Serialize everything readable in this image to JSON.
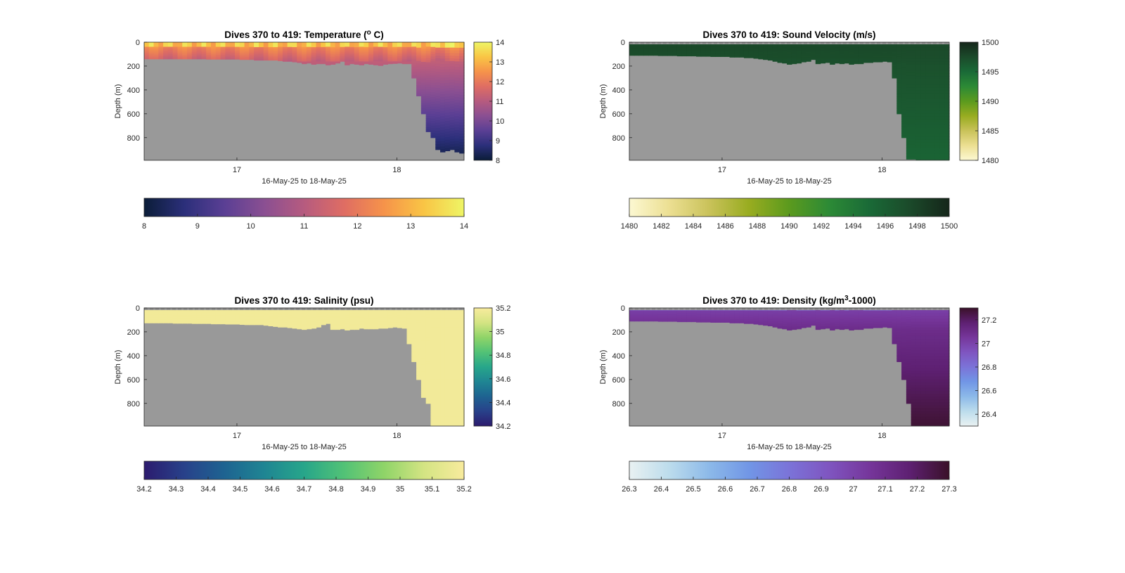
{
  "chart_data": [
    {
      "type": "heatmap",
      "title_main": "Dives 370 to 419: Temperature (",
      "title_sup": "o",
      "title_tail": " C)",
      "ylabel": "Depth (m)",
      "xlabel": "16-May-25 to 18-May-25",
      "x_ticks": [
        "17",
        "18"
      ],
      "y_ticks": [
        "0",
        "200",
        "400",
        "600",
        "800"
      ],
      "ylim": [
        0,
        990
      ],
      "colorbar_right_ticks": [
        "8",
        "9",
        "10",
        "11",
        "12",
        "13",
        "14"
      ],
      "colorbar_bottom_ticks": [
        "8",
        "9",
        "10",
        "11",
        "12",
        "13",
        "14"
      ],
      "clim": [
        8,
        14
      ],
      "colormap": [
        "#0b1d38",
        "#2b2f7a",
        "#5a3f94",
        "#8a4f92",
        "#b65b7f",
        "#df6d63",
        "#f6934a",
        "#f9c545",
        "#eef565"
      ],
      "nodata_color": "#999999",
      "max_depth_profile": [
        140,
        140,
        140,
        140,
        140,
        140,
        140,
        140,
        140,
        140,
        140,
        140,
        140,
        142,
        142,
        142,
        142,
        142,
        142,
        142,
        145,
        145,
        145,
        150,
        150,
        150,
        150,
        150,
        155,
        160,
        160,
        165,
        170,
        180,
        175,
        185,
        180,
        180,
        190,
        185,
        175,
        160,
        190,
        180,
        185,
        190,
        180,
        185,
        190,
        195,
        185,
        180,
        178,
        175,
        180,
        180,
        300,
        450,
        600,
        750,
        800,
        900,
        920,
        910,
        900,
        920,
        930
      ],
      "value_note": "surface ~13-14, ~11 at 150 m, ~10 at 400 m, ~8.5 at 800 m"
    },
    {
      "type": "heatmap",
      "title_main": "Dives 370 to 419: Sound Velocity (m/s)",
      "title_sup": "",
      "title_tail": "",
      "ylabel": "Depth (m)",
      "xlabel": "16-May-25 to 18-May-25",
      "x_ticks": [
        "17",
        "18"
      ],
      "y_ticks": [
        "0",
        "200",
        "400",
        "600",
        "800"
      ],
      "ylim": [
        0,
        990
      ],
      "colorbar_right_ticks": [
        "1480",
        "1485",
        "1490",
        "1495",
        "1500"
      ],
      "colorbar_bottom_ticks": [
        "1480",
        "1482",
        "1484",
        "1486",
        "1488",
        "1490",
        "1492",
        "1494",
        "1496",
        "1498",
        "1500"
      ],
      "clim": [
        1480,
        1500
      ],
      "colormap": [
        "#fcf8d2",
        "#ecdf92",
        "#c9c25a",
        "#98ac20",
        "#5b9a1e",
        "#2c8a36",
        "#1a6a37",
        "#1b4a2a",
        "#15261a"
      ],
      "nodata_color": "#999999",
      "max_depth_profile": [
        110,
        110,
        110,
        110,
        110,
        110,
        112,
        112,
        112,
        112,
        115,
        115,
        115,
        115,
        118,
        118,
        118,
        120,
        120,
        120,
        120,
        125,
        125,
        125,
        130,
        130,
        135,
        140,
        145,
        150,
        160,
        170,
        175,
        185,
        180,
        175,
        165,
        160,
        145,
        180,
        175,
        170,
        185,
        175,
        180,
        175,
        185,
        180,
        180,
        170,
        170,
        165,
        165,
        160,
        165,
        300,
        600,
        800,
        980,
        980,
        985,
        985,
        985,
        985,
        985,
        985,
        985
      ],
      "value_note": "approx 1498 at surface to 1495 below 200 m"
    },
    {
      "type": "heatmap",
      "title_main": "Dives 370 to 419: Salinity (psu)",
      "title_sup": "",
      "title_tail": "",
      "ylabel": "Depth (m)",
      "xlabel": "16-May-25 to 18-May-25",
      "x_ticks": [
        "17",
        "18"
      ],
      "y_ticks": [
        "0",
        "200",
        "400",
        "600",
        "800"
      ],
      "ylim": [
        0,
        990
      ],
      "colorbar_right_ticks": [
        "34.2",
        "34.4",
        "34.6",
        "34.8",
        "35",
        "35.2"
      ],
      "colorbar_bottom_ticks": [
        "34.2",
        "34.3",
        "34.4",
        "34.5",
        "34.6",
        "34.7",
        "34.8",
        "34.9",
        "35",
        "35.1",
        "35.2"
      ],
      "clim": [
        34.2,
        35.2
      ],
      "colormap": [
        "#2c1b6e",
        "#28418a",
        "#1e6391",
        "#1f8593",
        "#27a68a",
        "#52c276",
        "#8fd468",
        "#d4e483",
        "#f8eb9d"
      ],
      "nodata_color": "#999999",
      "max_depth_profile": [
        125,
        125,
        125,
        125,
        125,
        125,
        128,
        128,
        128,
        128,
        130,
        130,
        130,
        130,
        133,
        133,
        133,
        135,
        135,
        135,
        138,
        140,
        140,
        140,
        140,
        145,
        150,
        155,
        160,
        160,
        165,
        170,
        175,
        180,
        175,
        170,
        160,
        140,
        130,
        180,
        180,
        175,
        185,
        180,
        180,
        170,
        175,
        175,
        175,
        170,
        170,
        165,
        160,
        165,
        170,
        300,
        450,
        600,
        750,
        800,
        985,
        985,
        985,
        985,
        985,
        985,
        985
      ],
      "value_note": "approx 35.2 throughout"
    },
    {
      "type": "heatmap",
      "title_main": "Dives 370 to 419: Density (kg/m",
      "title_sup": "3",
      "title_tail": "-1000)",
      "ylabel": "Depth (m)",
      "xlabel": "16-May-25 to 18-May-25",
      "x_ticks": [
        "17",
        "18"
      ],
      "y_ticks": [
        "0",
        "200",
        "400",
        "600",
        "800"
      ],
      "ylim": [
        0,
        990
      ],
      "colorbar_right_ticks": [
        "26.4",
        "26.6",
        "26.8",
        "27",
        "27.2"
      ],
      "colorbar_bottom_ticks": [
        "26.3",
        "26.4",
        "26.5",
        "26.6",
        "26.7",
        "26.8",
        "26.9",
        "27",
        "27.1",
        "27.2",
        "27.3"
      ],
      "clim": [
        26.3,
        27.3
      ],
      "colormap": [
        "#e9f1f2",
        "#bcdcec",
        "#8cb9e9",
        "#7196e6",
        "#7b73d8",
        "#7f55c0",
        "#76369b",
        "#5e2072",
        "#3a1129"
      ],
      "nodata_color": "#999999",
      "max_depth_profile": [
        110,
        110,
        110,
        110,
        110,
        110,
        112,
        112,
        112,
        112,
        115,
        115,
        115,
        115,
        118,
        118,
        118,
        120,
        120,
        120,
        120,
        125,
        125,
        125,
        130,
        130,
        135,
        140,
        145,
        150,
        160,
        170,
        175,
        185,
        180,
        175,
        165,
        160,
        145,
        180,
        175,
        170,
        185,
        175,
        180,
        175,
        185,
        180,
        180,
        170,
        170,
        165,
        165,
        160,
        165,
        300,
        450,
        600,
        800,
        985,
        985,
        985,
        985,
        985,
        985,
        985,
        985
      ],
      "value_note": "approx 26.8 near surface to 27.3 at depth"
    }
  ]
}
